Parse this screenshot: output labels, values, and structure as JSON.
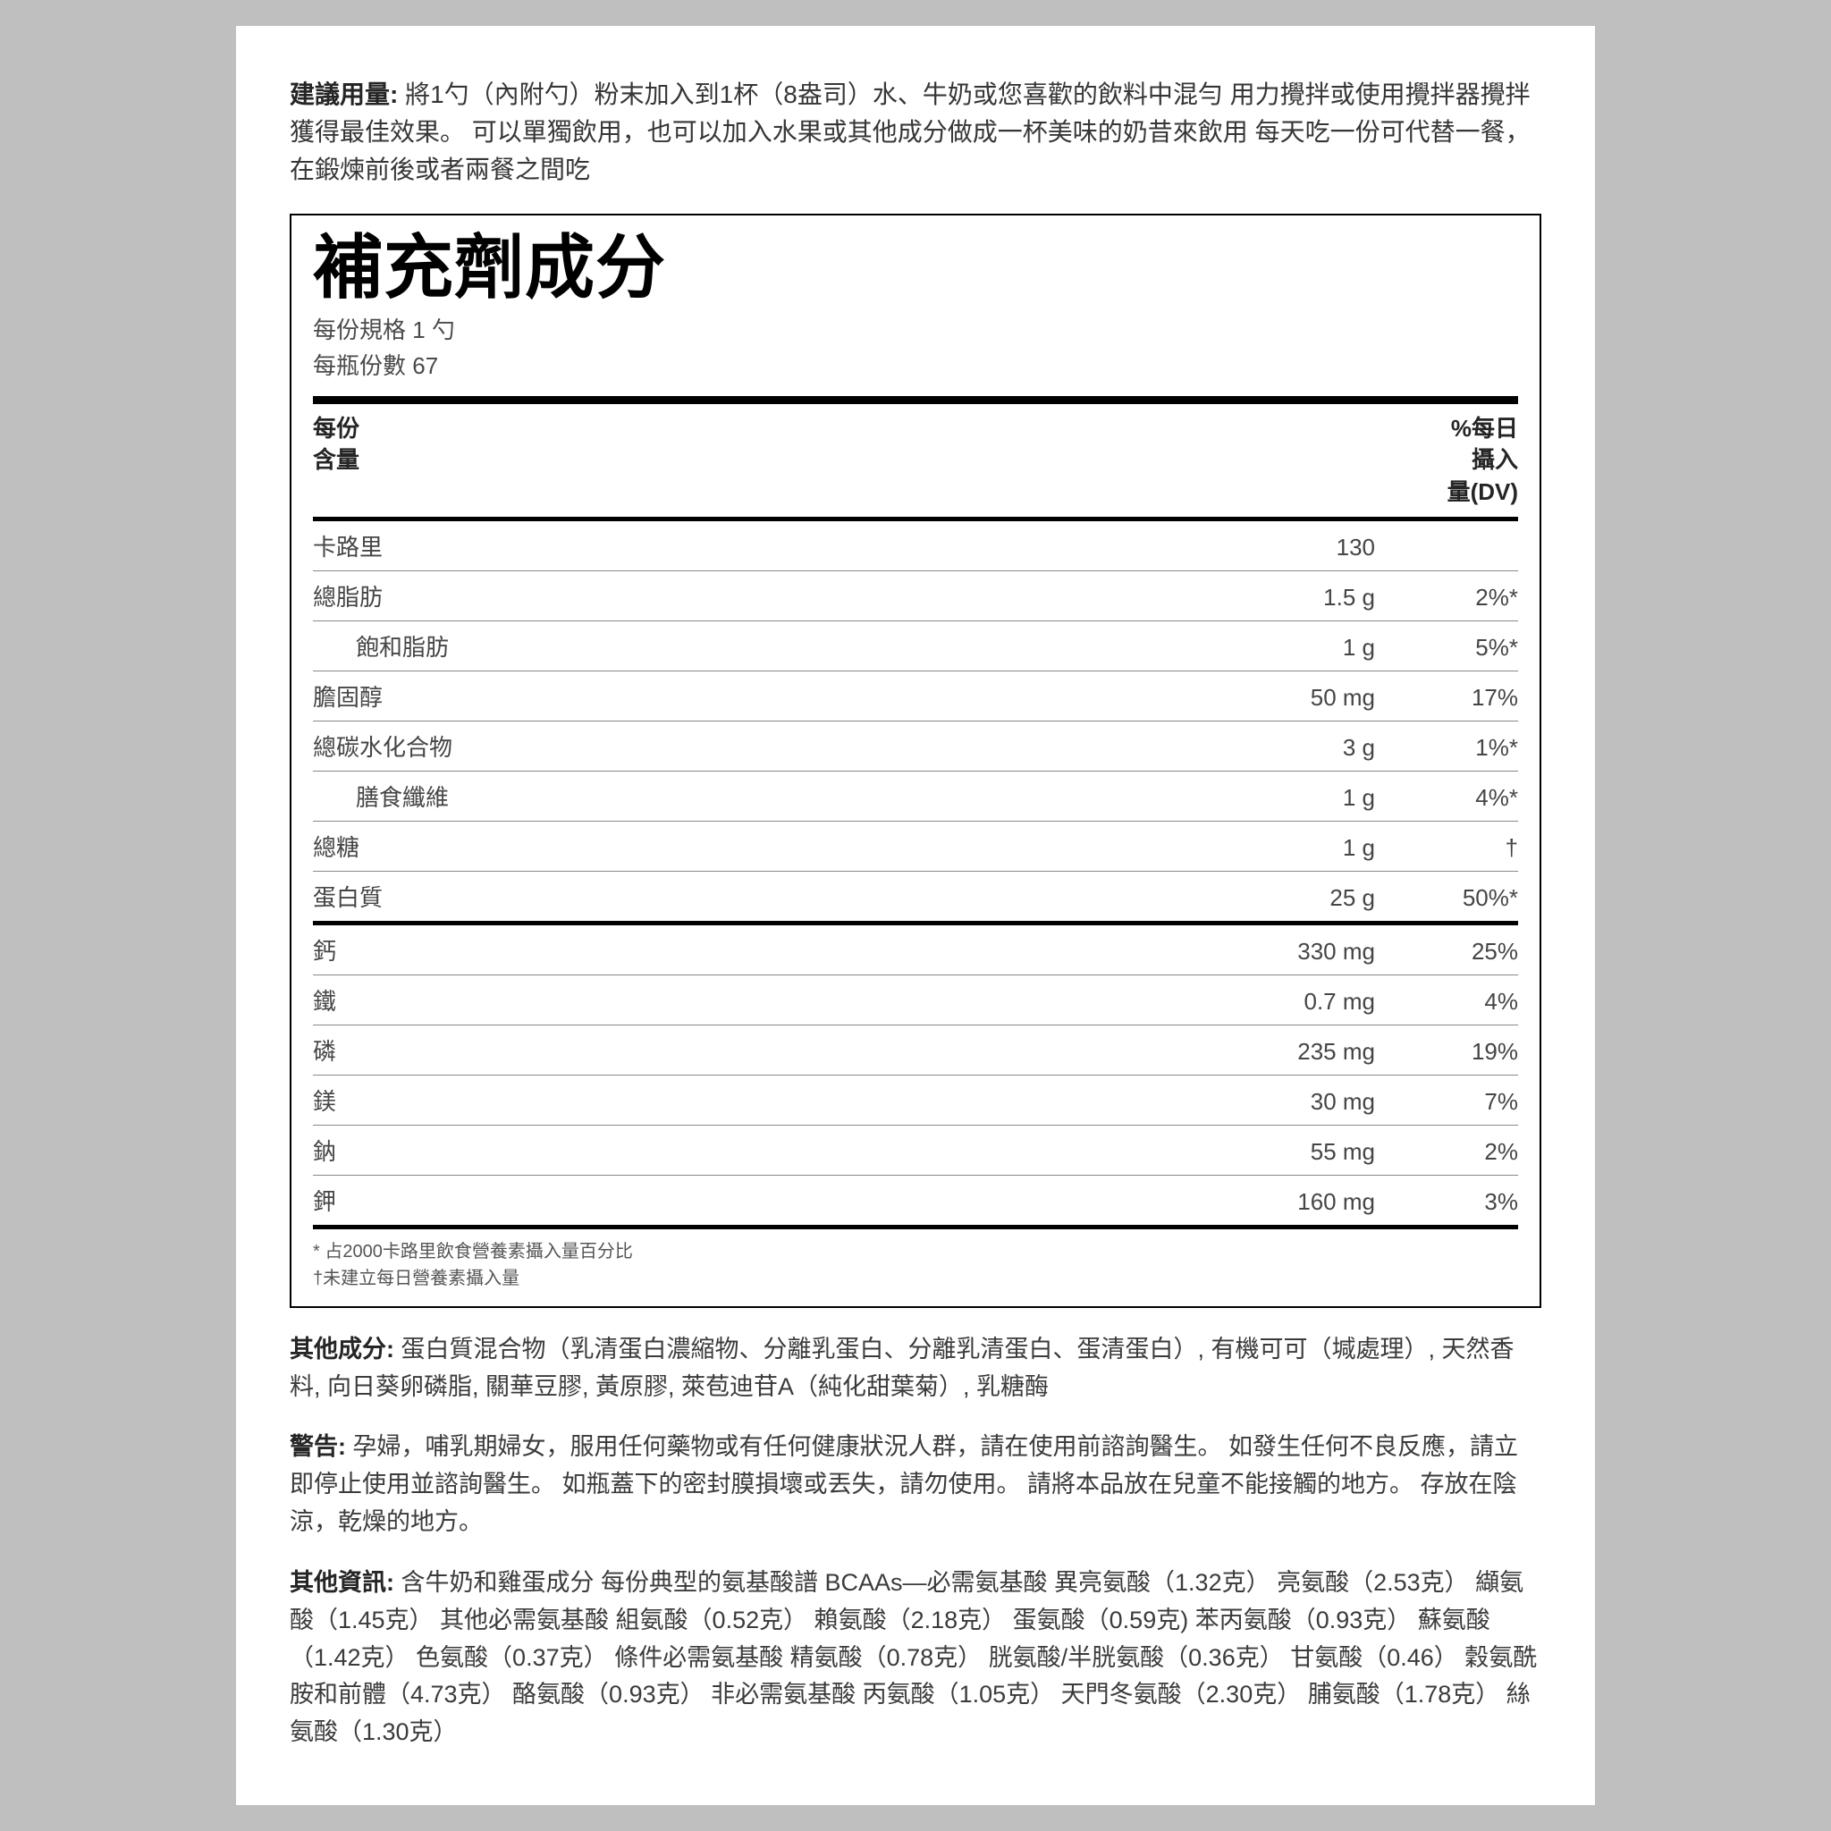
{
  "usage": {
    "label": "建議用量:",
    "text": "將1勺（內附勺）粉末加入到1杯（8盎司）水、牛奶或您喜歡的飲料中混勻 用力攪拌或使用攪拌器攪拌獲得最佳效果。 可以單獨飲用，也可以加入水果或其他成分做成一杯美味的奶昔來飲用 每天吃一份可代替一餐，在鍛煉前後或者兩餐之間吃"
  },
  "facts": {
    "title": "補充劑成分",
    "serving_size_label": "每份規格",
    "serving_size_value": "1 勺",
    "servings_label": "每瓶份數",
    "servings_value": "67",
    "head_left": "每份\n含量",
    "head_right": "%每日\n攝入\n量(DV)",
    "rows": [
      {
        "name": "卡路里",
        "amount": "130",
        "dv": "",
        "indent": false,
        "after": "thin"
      },
      {
        "name": "總脂肪",
        "amount": "1.5 g",
        "dv": "2%*",
        "indent": false,
        "after": "thin"
      },
      {
        "name": "飽和脂肪",
        "amount": "1 g",
        "dv": "5%*",
        "indent": true,
        "after": "thin"
      },
      {
        "name": "膽固醇",
        "amount": "50 mg",
        "dv": "17%",
        "indent": false,
        "after": "thin"
      },
      {
        "name": "總碳水化合物",
        "amount": "3 g",
        "dv": "1%*",
        "indent": false,
        "after": "thin"
      },
      {
        "name": "膳食纖維",
        "amount": "1 g",
        "dv": "4%*",
        "indent": true,
        "after": "thin"
      },
      {
        "name": "總糖",
        "amount": "1 g",
        "dv": "†",
        "indent": false,
        "after": "thin"
      },
      {
        "name": "蛋白質",
        "amount": "25 g",
        "dv": "50%*",
        "indent": false,
        "after": "med"
      },
      {
        "name": "鈣",
        "amount": "330 mg",
        "dv": "25%",
        "indent": false,
        "after": "thin"
      },
      {
        "name": "鐵",
        "amount": "0.7 mg",
        "dv": "4%",
        "indent": false,
        "after": "thin"
      },
      {
        "name": "磷",
        "amount": "235 mg",
        "dv": "19%",
        "indent": false,
        "after": "thin"
      },
      {
        "name": "鎂",
        "amount": "30 mg",
        "dv": "7%",
        "indent": false,
        "after": "thin"
      },
      {
        "name": "鈉",
        "amount": "55 mg",
        "dv": "2%",
        "indent": false,
        "after": "thin"
      },
      {
        "name": "鉀",
        "amount": "160 mg",
        "dv": "3%",
        "indent": false,
        "after": "med"
      }
    ],
    "footnote1": "* 占2000卡路里飲食營養素攝入量百分比",
    "footnote2": "†未建立每日營養素攝入量"
  },
  "other_ingredients": {
    "label": "其他成分:",
    "text": "蛋白質混合物（乳清蛋白濃縮物、分離乳蛋白、分離乳清蛋白、蛋清蛋白）, 有機可可（堿處理）, 天然香料, 向日葵卵磷脂, 關華豆膠, 黃原膠, 萊苞迪苷A（純化甜葉菊）, 乳糖酶"
  },
  "warning": {
    "label": "警告:",
    "text": "孕婦，哺乳期婦女，服用任何藥物或有任何健康狀況人群，請在使用前諮詢醫生。 如發生任何不良反應，請立即停止使用並諮詢醫生。 如瓶蓋下的密封膜損壞或丟失，請勿使用。 請將本品放在兒童不能接觸的地方。 存放在陰涼，乾燥的地方。"
  },
  "other_info": {
    "label": "其他資訊:",
    "text": "含牛奶和雞蛋成分 每份典型的氨基酸譜 BCAAs—必需氨基酸 異亮氨酸（1.32克） 亮氨酸（2.53克） 纈氨酸（1.45克） 其他必需氨基酸 組氨酸（0.52克） 賴氨酸（2.18克） 蛋氨酸（0.59克) 苯丙氨酸（0.93克） 蘇氨酸（1.42克） 色氨酸（0.37克） 條件必需氨基酸 精氨酸（0.78克） 胱氨酸/半胱氨酸（0.36克） 甘氨酸（0.46） 穀氨酰胺和前體（4.73克） 酪氨酸（0.93克） 非必需氨基酸 丙氨酸（1.05克） 天門冬氨酸（2.30克） 脯氨酸（1.78克） 絲氨酸（1.30克）"
  }
}
